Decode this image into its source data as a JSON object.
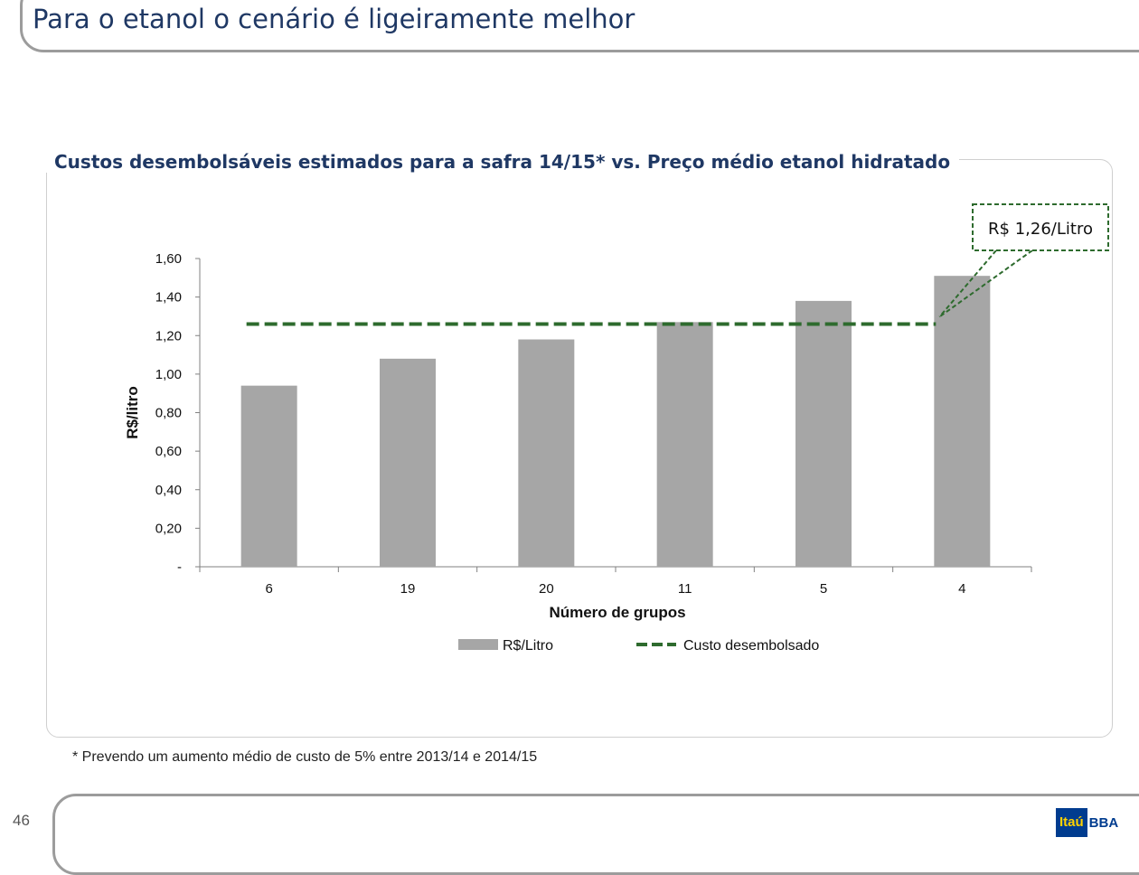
{
  "page": {
    "title": "Para o etanol o cenário é ligeiramente melhor",
    "footnote": "* Prevendo um aumento médio de custo de 5% entre 2013/14 e 2014/15",
    "page_number": "46",
    "logo": {
      "box_text": "Itaú",
      "text": "BBA"
    }
  },
  "chart_data": {
    "type": "bar",
    "title": "Custos desembolsáveis estimados para a safra 14/15* vs. Preço médio etanol hidratado",
    "xlabel": "Número de grupos",
    "ylabel": "R$/litro",
    "categories": [
      "6",
      "19",
      "20",
      "11",
      "5",
      "4"
    ],
    "series": [
      {
        "name": "R$/Litro",
        "values": [
          0.94,
          1.08,
          1.18,
          1.27,
          1.38,
          1.51
        ],
        "color": "#a6a6a6"
      }
    ],
    "reference_line": {
      "name": "Custo desembolsado",
      "value": 1.26,
      "color": "#2e6b2e",
      "style": "dashed"
    },
    "callout": "R$ 1,26/Litro",
    "yticks": [
      "-",
      "0,20",
      "0,40",
      "0,60",
      "0,80",
      "1,00",
      "1,20",
      "1,40",
      "1,60"
    ],
    "ylim": [
      0,
      1.6
    ],
    "grid": false,
    "legend": "bottom"
  }
}
